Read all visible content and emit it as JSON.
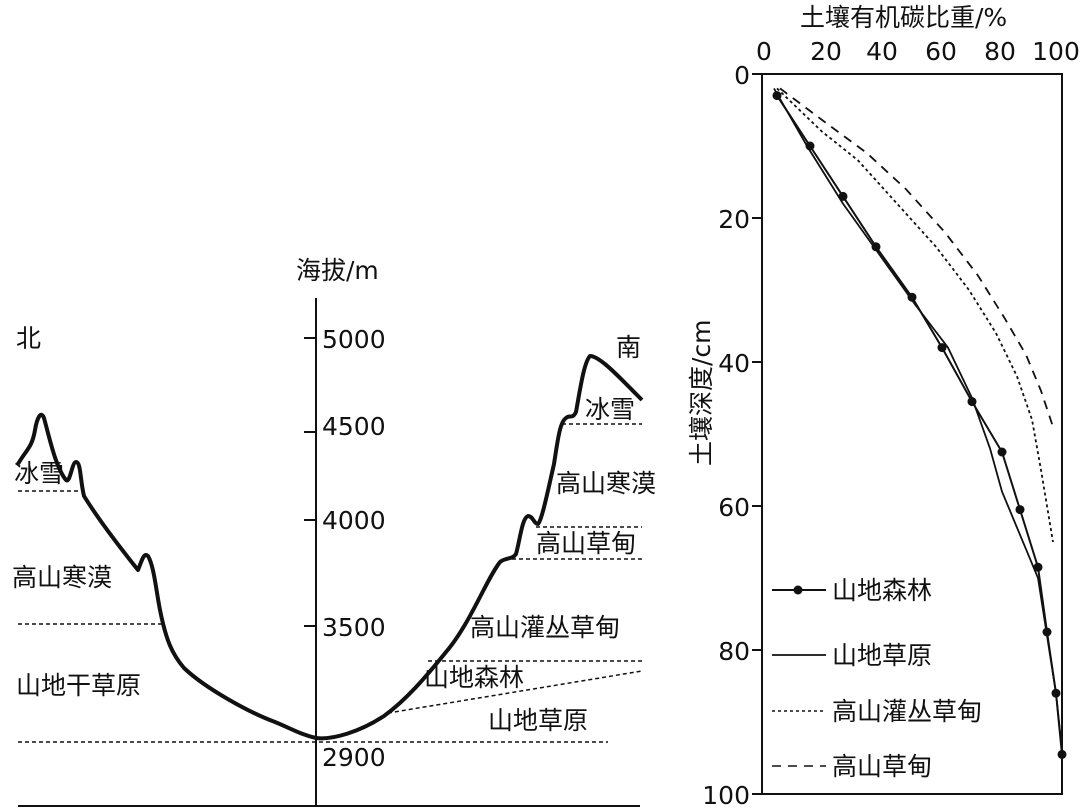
{
  "profile": {
    "y_axis_label": "海拔/m",
    "elevation_ticks": [
      "5000",
      "4500",
      "4000",
      "3500",
      "2900"
    ],
    "north_label": "北",
    "south_label": "南",
    "north_zones": [
      "冰雪",
      "高山寒漠",
      "山地干草原"
    ],
    "south_zones": [
      "冰雪",
      "高山寒漠",
      "高山草甸",
      "高山灌丛草甸",
      "山地森林",
      "山地草原"
    ]
  },
  "chart_data": {
    "type": "line",
    "title": "",
    "xlabel": "土壤有机碳比重/%",
    "ylabel": "土壤深度/cm",
    "xlim": [
      0,
      100
    ],
    "ylim": [
      100,
      0
    ],
    "x_ticks": [
      "0",
      "20",
      "40",
      "60",
      "80",
      "100"
    ],
    "y_ticks": [
      "0",
      "20",
      "40",
      "60",
      "80",
      "100"
    ],
    "legend_position": "bottom-left",
    "series": [
      {
        "name": "山地森林",
        "style": "solid-dots",
        "points": [
          [
            5,
            3
          ],
          [
            16,
            10
          ],
          [
            27,
            17
          ],
          [
            38,
            24
          ],
          [
            50,
            31
          ],
          [
            60,
            38
          ],
          [
            70,
            45.5
          ],
          [
            80,
            52.5
          ],
          [
            86,
            60.5
          ],
          [
            92,
            68.5
          ],
          [
            95,
            77.5
          ],
          [
            98,
            86
          ],
          [
            100,
            94.5
          ],
          [
            100,
            100
          ]
        ]
      },
      {
        "name": "山地草原",
        "style": "solid",
        "points": [
          [
            4,
            2
          ],
          [
            15,
            10
          ],
          [
            27,
            18
          ],
          [
            39,
            25
          ],
          [
            51,
            32
          ],
          [
            62,
            38
          ],
          [
            70,
            45
          ],
          [
            76,
            52
          ],
          [
            80,
            58
          ],
          [
            88,
            66
          ],
          [
            92,
            70
          ],
          [
            95,
            78
          ],
          [
            98,
            86
          ],
          [
            100,
            94
          ],
          [
            100,
            100
          ]
        ]
      },
      {
        "name": "高山灌丛草甸",
        "style": "dotted",
        "points": [
          [
            5,
            2
          ],
          [
            20,
            8
          ],
          [
            32,
            12
          ],
          [
            45,
            18
          ],
          [
            58,
            24
          ],
          [
            69,
            30
          ],
          [
            78,
            36
          ],
          [
            85,
            42
          ],
          [
            90,
            48
          ],
          [
            93,
            55
          ],
          [
            95,
            60
          ],
          [
            97,
            65
          ]
        ]
      },
      {
        "name": "高山草甸",
        "style": "dashed",
        "points": [
          [
            6,
            2
          ],
          [
            22,
            7
          ],
          [
            35,
            11
          ],
          [
            48,
            16
          ],
          [
            61,
            22
          ],
          [
            72,
            28
          ],
          [
            81,
            34
          ],
          [
            88,
            39
          ],
          [
            93,
            44
          ],
          [
            97,
            49
          ]
        ]
      }
    ]
  }
}
